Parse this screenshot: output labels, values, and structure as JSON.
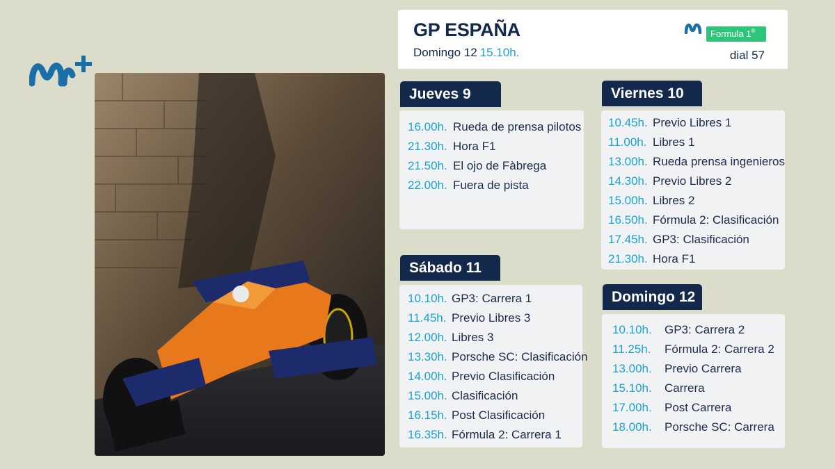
{
  "brand": {
    "logo_text": "M+",
    "logo_color": "#1b6fa8"
  },
  "header": {
    "title": "GP ESPAÑA",
    "date_label": "Domingo 12",
    "time": "15.10h.",
    "channel_badge": "Formula 1",
    "channel_badge_mark": "®",
    "dial": "dial 57"
  },
  "colors": {
    "navy": "#13294b",
    "cyan": "#1aa3cf",
    "green": "#2ec47a"
  },
  "days": [
    {
      "name": "Jueves 9",
      "items": [
        {
          "time": "16.00h.",
          "program": "Rueda de prensa pilotos"
        },
        {
          "time": "21.30h.",
          "program": "Hora F1"
        },
        {
          "time": "21.50h.",
          "program": "El ojo de Fàbrega"
        },
        {
          "time": "22.00h.",
          "program": "Fuera de pista"
        }
      ]
    },
    {
      "name": "Viernes 10",
      "items": [
        {
          "time": "10.45h.",
          "program": "Previo Libres 1"
        },
        {
          "time": "11.00h.",
          "program": "Libres 1"
        },
        {
          "time": "13.00h.",
          "program": "Rueda prensa ingenieros"
        },
        {
          "time": "14.30h.",
          "program": "Previo Libres 2"
        },
        {
          "time": "15.00h.",
          "program": "Libres 2"
        },
        {
          "time": "16.50h.",
          "program": "Fórmula 2: Clasificación"
        },
        {
          "time": "17.45h.",
          "program": "GP3: Clasificación"
        },
        {
          "time": "21.30h.",
          "program": "Hora F1"
        }
      ]
    },
    {
      "name": "Sábado 11",
      "items": [
        {
          "time": "10.10h.",
          "program": "GP3: Carrera 1"
        },
        {
          "time": "11.45h.",
          "program": "Previo Libres 3"
        },
        {
          "time": "12.00h.",
          "program": "Libres 3"
        },
        {
          "time": "13.30h.",
          "program": "Porsche SC: Clasificación"
        },
        {
          "time": "14.00h.",
          "program": "Previo Clasificación"
        },
        {
          "time": "15.00h.",
          "program": "Clasificación"
        },
        {
          "time": "16.15h.",
          "program": "Post Clasificación"
        },
        {
          "time": "16.35h.",
          "program": "Fórmula 2: Carrera 1"
        }
      ]
    },
    {
      "name": "Domingo 12",
      "items": [
        {
          "time": "10.10h.",
          "program": "GP3: Carrera 2"
        },
        {
          "time": "11.25h.",
          "program": "Fórmula 2: Carrera 2"
        },
        {
          "time": "13.00h.",
          "program": "Previo Carrera"
        },
        {
          "time": "15.10h.",
          "program": "Carrera"
        },
        {
          "time": "17.00h.",
          "program": "Post Carrera"
        },
        {
          "time": "18.00h.",
          "program": "Porsche SC: Carrera"
        }
      ]
    }
  ]
}
